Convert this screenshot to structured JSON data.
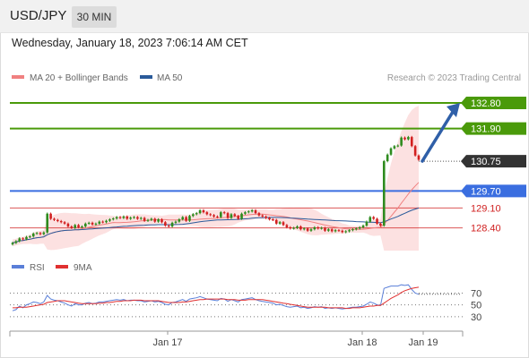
{
  "header": {
    "pair": "USD/JPY",
    "timeframe": "30 MIN",
    "datetime": "Wednesday, January 18, 2023 7:06:14 AM CET"
  },
  "legend": {
    "ma20": "MA 20 + Bollinger Bands",
    "ma50": "MA 50",
    "credit": "Research © 2023 Trading Central"
  },
  "rsi_legend": {
    "rsi": "RSI",
    "ma9": "9MA"
  },
  "colors": {
    "resistance": "#4a9a0a",
    "pivot": "#3a6ee0",
    "support": "#d02020",
    "current": "#333333",
    "bullish": "#2e8b1e",
    "bearish": "#d22020",
    "ma20": "#f08080",
    "ma50": "#2a5a9a",
    "band_fill": "#fbdcdc",
    "arrow": "#2f5fa8",
    "rsi": "#5a7fd8",
    "rsi_ma": "#e03030"
  },
  "chart_data": [
    {
      "type": "candlestick",
      "instrument": "USD/JPY",
      "ylim": [
        127.6,
        133.4
      ],
      "x_labels": [
        "Jan 17",
        "Jan 18",
        "Jan 19"
      ],
      "levels": [
        {
          "label": "132.80",
          "value": 132.8,
          "kind": "resistance"
        },
        {
          "label": "131.90",
          "value": 131.9,
          "kind": "resistance"
        },
        {
          "label": "130.75",
          "value": 130.75,
          "kind": "current"
        },
        {
          "label": "129.70",
          "value": 129.7,
          "kind": "pivot"
        },
        {
          "label": "129.10",
          "value": 129.1,
          "kind": "support"
        },
        {
          "label": "128.40",
          "value": 128.4,
          "kind": "support"
        }
      ],
      "close": [
        127.87,
        127.93,
        128.03,
        128.0,
        128.08,
        128.1,
        128.2,
        128.22,
        128.18,
        128.24,
        128.9,
        128.72,
        128.68,
        128.64,
        128.6,
        128.55,
        128.45,
        128.4,
        128.5,
        128.42,
        128.45,
        128.55,
        128.58,
        128.52,
        128.55,
        128.62,
        128.6,
        128.65,
        128.7,
        128.73,
        128.78,
        128.75,
        128.8,
        128.72,
        128.76,
        128.78,
        128.72,
        128.75,
        128.65,
        128.68,
        128.72,
        128.62,
        128.7,
        128.6,
        128.48,
        128.45,
        128.58,
        128.62,
        128.7,
        128.78,
        128.65,
        128.82,
        128.88,
        128.92,
        129.02,
        128.95,
        128.88,
        128.85,
        128.8,
        128.78,
        128.95,
        128.92,
        128.75,
        128.88,
        128.82,
        128.72,
        128.9,
        128.95,
        128.98,
        129.02,
        128.92,
        128.84,
        128.8,
        128.75,
        128.7,
        128.68,
        128.55,
        128.6,
        128.5,
        128.42,
        128.38,
        128.4,
        128.45,
        128.35,
        128.38,
        128.3,
        128.35,
        128.42,
        128.38,
        128.4,
        128.3,
        128.35,
        128.28,
        128.32,
        128.3,
        128.25,
        128.28,
        128.32,
        128.35,
        128.38,
        128.42,
        128.48,
        128.62,
        128.78,
        128.72,
        128.55,
        128.48,
        130.75,
        130.98,
        131.2,
        131.28,
        131.3,
        131.58,
        131.52,
        131.6,
        131.28,
        130.95,
        130.8
      ],
      "overlays": [
        "MA 20 + Bollinger Bands",
        "MA 50"
      ],
      "projection": {
        "from": 130.75,
        "to": 132.8,
        "direction": "up"
      }
    },
    {
      "type": "line",
      "series": [
        {
          "name": "RSI",
          "values": [
            40,
            42,
            48,
            45,
            50,
            52,
            55,
            54,
            52,
            55,
            66,
            60,
            58,
            57,
            55,
            53,
            50,
            48,
            52,
            50,
            50,
            53,
            54,
            52,
            53,
            55,
            55,
            56,
            57,
            58,
            59,
            58,
            59,
            57,
            58,
            58,
            57,
            57,
            55,
            56,
            57,
            55,
            56,
            54,
            51,
            50,
            54,
            55,
            57,
            59,
            56,
            60,
            61,
            62,
            64,
            62,
            60,
            59,
            58,
            57,
            61,
            60,
            56,
            59,
            57,
            55,
            59,
            60,
            61,
            62,
            59,
            57,
            56,
            55,
            54,
            53,
            50,
            51,
            49,
            47,
            46,
            47,
            48,
            45,
            46,
            44,
            45,
            47,
            46,
            47,
            44,
            45,
            44,
            45,
            44,
            43,
            44,
            45,
            46,
            46,
            47,
            48,
            51,
            55,
            53,
            50,
            49,
            78,
            80,
            82,
            82,
            82,
            84,
            83,
            84,
            76,
            70,
            68
          ]
        },
        {
          "name": "9MA",
          "values": [
            45,
            45,
            46,
            46,
            46,
            47,
            48,
            49,
            50,
            51,
            54,
            55,
            56,
            57,
            57,
            57,
            56,
            55,
            54,
            53,
            52,
            52,
            52,
            52,
            52,
            53,
            53,
            54,
            54,
            55,
            56,
            56,
            57,
            57,
            57,
            58,
            58,
            58,
            57,
            57,
            57,
            57,
            57,
            56,
            55,
            54,
            54,
            54,
            54,
            55,
            55,
            56,
            57,
            58,
            59,
            59,
            60,
            60,
            60,
            60,
            60,
            60,
            59,
            59,
            59,
            58,
            58,
            58,
            59,
            59,
            59,
            59,
            59,
            58,
            57,
            56,
            55,
            54,
            53,
            52,
            51,
            50,
            49,
            48,
            47,
            46,
            46,
            46,
            46,
            46,
            46,
            45,
            45,
            45,
            45,
            45,
            44,
            44,
            45,
            45,
            45,
            46,
            47,
            48,
            48,
            49,
            49,
            53,
            57,
            61,
            64,
            67,
            71,
            74,
            76,
            78,
            79,
            80
          ]
        }
      ],
      "levels": [
        {
          "label": "70",
          "value": 70
        },
        {
          "label": "50",
          "value": 50
        },
        {
          "label": "30",
          "value": 30
        }
      ],
      "ylim": [
        10,
        95
      ]
    }
  ]
}
